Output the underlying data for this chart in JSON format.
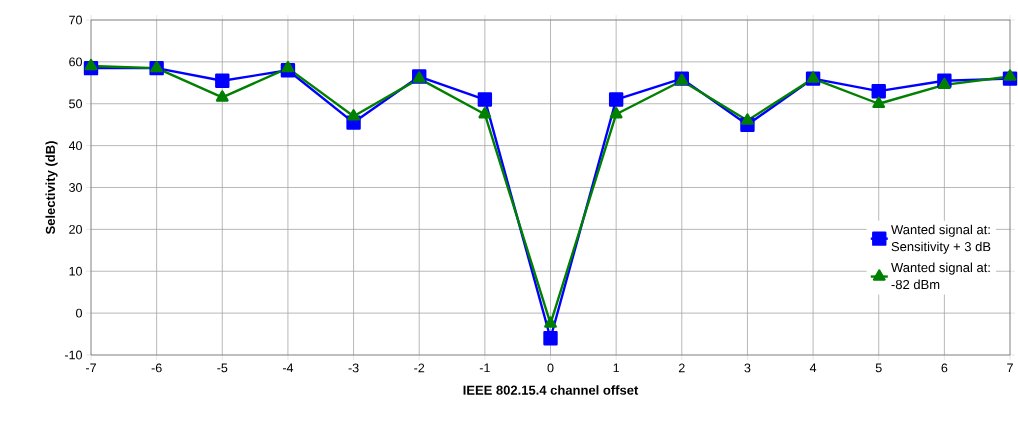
{
  "chart_data": {
    "type": "line",
    "xlabel": "IEEE 802.15.4 channel offset",
    "ylabel": "Selectivity (dB)",
    "x": [
      -7,
      -6,
      -5,
      -4,
      -3,
      -2,
      -1,
      0,
      1,
      2,
      3,
      4,
      5,
      6,
      7
    ],
    "series": [
      {
        "name": "Wanted signal at:\nSensitivity + 3 dB",
        "color": "#0000ff",
        "marker": "square",
        "values": [
          58.5,
          58.5,
          55.5,
          58,
          45.5,
          56.5,
          51,
          -6,
          51,
          56,
          45,
          56,
          53,
          55.5,
          56
        ]
      },
      {
        "name": "Wanted signal at:\n-82 dBm",
        "color": "#008000",
        "marker": "triangle",
        "values": [
          59,
          58.5,
          51.5,
          58.5,
          47,
          56,
          47.5,
          -2.5,
          47.5,
          55.5,
          46,
          56,
          50,
          54.5,
          56.5
        ]
      }
    ],
    "xlim": [
      -7,
      7
    ],
    "xticks": [
      -7,
      -6,
      -5,
      -4,
      -3,
      -2,
      -1,
      0,
      1,
      2,
      3,
      4,
      5,
      6,
      7
    ],
    "ylim": [
      -10,
      70
    ],
    "yticks": [
      -10,
      0,
      10,
      20,
      30,
      40,
      50,
      60,
      70
    ],
    "grid": true,
    "legend": "right",
    "line_style": "solid"
  }
}
